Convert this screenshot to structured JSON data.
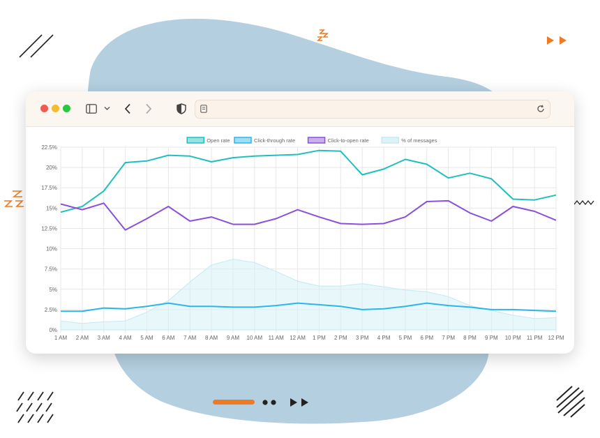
{
  "colors": {
    "blob": "#b4cfe0",
    "accent_orange": "#ee7a24",
    "ink": "#1a1a1a",
    "open_rate": "#1fbfbf",
    "click_through": "#2bb6e6",
    "click_to_open": "#8a4fdc",
    "messages": "#d6f0f6"
  },
  "browser": {
    "traffic_lights": [
      "#ef5b4f",
      "#f5bc2f",
      "#28c840"
    ],
    "icons": [
      "sidebar-icon",
      "chevron-down-icon",
      "back-arrow-icon",
      "forward-arrow-icon",
      "shield-icon",
      "page-icon",
      "reload-icon"
    ]
  },
  "chart_data": {
    "type": "line",
    "categories": [
      "1 AM",
      "2 AM",
      "3 AM",
      "4 AM",
      "5 AM",
      "6 AM",
      "7 AM",
      "8 AM",
      "9 AM",
      "10 AM",
      "11 AM",
      "12 AM",
      "1 PM",
      "2 PM",
      "3 PM",
      "4 PM",
      "5 PM",
      "6 PM",
      "7 PM",
      "8 PM",
      "9 PM",
      "10 PM",
      "11 PM",
      "12 PM"
    ],
    "ylim": [
      0,
      22.5
    ],
    "yticks": [
      "0%",
      "2.5%",
      "5%",
      "7.5%",
      "10%",
      "12.5%",
      "15%",
      "17.5%",
      "20%",
      "22.5%"
    ],
    "grid": true,
    "legend_position": "top",
    "series": [
      {
        "name": "Open rate",
        "style": "line",
        "color": "#1fbfbf",
        "values": [
          14.5,
          15.2,
          17.1,
          20.6,
          20.8,
          21.5,
          21.4,
          20.7,
          21.2,
          21.4,
          21.5,
          21.6,
          22.1,
          22.0,
          19.1,
          19.8,
          21.0,
          20.4,
          18.7,
          19.3,
          18.6,
          16.1,
          16.0,
          16.6
        ]
      },
      {
        "name": "Click-through rate",
        "style": "line",
        "color": "#2bb6e6",
        "values": [
          2.3,
          2.3,
          2.7,
          2.6,
          2.9,
          3.3,
          2.9,
          2.9,
          2.8,
          2.8,
          3.0,
          3.3,
          3.1,
          2.9,
          2.5,
          2.6,
          2.9,
          3.3,
          3.0,
          2.8,
          2.5,
          2.5,
          2.4,
          2.3
        ]
      },
      {
        "name": "Click-to-open rate",
        "style": "line",
        "color": "#8a4fdc",
        "values": [
          15.5,
          14.8,
          15.6,
          12.3,
          13.7,
          15.2,
          13.4,
          13.9,
          13.0,
          13.0,
          13.7,
          14.8,
          13.9,
          13.1,
          13.0,
          13.1,
          13.9,
          15.8,
          15.9,
          14.4,
          13.4,
          15.2,
          14.6,
          13.5
        ]
      },
      {
        "name": "% of messages",
        "style": "area",
        "color": "#d6f0f6",
        "values": [
          1.1,
          0.8,
          1.0,
          1.1,
          2.2,
          3.6,
          5.9,
          8.0,
          8.7,
          8.3,
          7.2,
          6.0,
          5.4,
          5.4,
          5.7,
          5.3,
          4.9,
          4.7,
          4.1,
          3.0,
          2.4,
          1.8,
          1.4,
          1.5
        ]
      }
    ]
  }
}
